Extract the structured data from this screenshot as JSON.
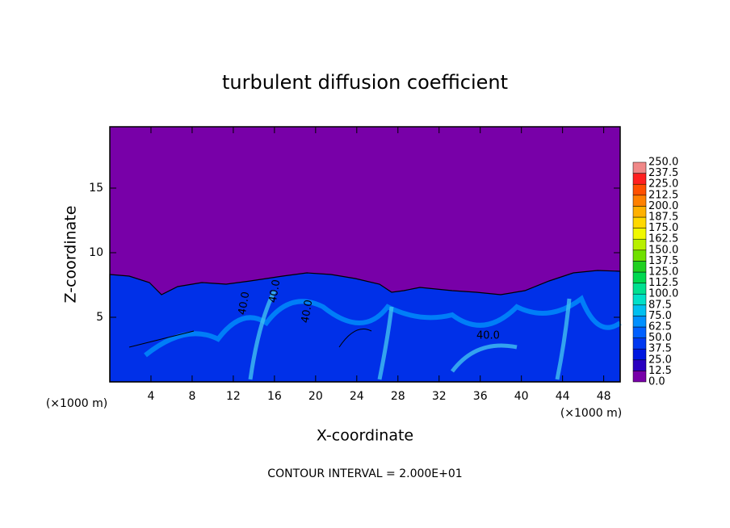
{
  "chart_data": {
    "type": "contour",
    "title": "turbulent diffusion coefficient",
    "x_label": "X-coordinate",
    "y_label": "Z-coordinate",
    "x_unit": "(×1000 m)",
    "y_unit": "(×1000 m)",
    "footer": "CONTOUR INTERVAL = 2.000E+01",
    "xlim": [
      0,
      49.6
    ],
    "ylim": [
      0,
      19.75
    ],
    "xticks": [
      4,
      8,
      12,
      16,
      20,
      24,
      28,
      32,
      36,
      40,
      44,
      48
    ],
    "yticks": [
      5,
      10,
      15
    ],
    "contour_labels": [
      "40.0",
      "40.0",
      "40.0",
      "40.0"
    ],
    "colorbar": {
      "levels": [
        {
          "value": 0,
          "label": "0.0"
        },
        {
          "value": 12.5,
          "label": "12.5"
        },
        {
          "value": 25,
          "label": "25.0"
        },
        {
          "value": 37.5,
          "label": "37.5"
        },
        {
          "value": 50,
          "label": "50.0"
        },
        {
          "value": 62.5,
          "label": "62.5"
        },
        {
          "value": 75,
          "label": "75.0"
        },
        {
          "value": 87.5,
          "label": "87.5"
        },
        {
          "value": 100,
          "label": "100.0"
        },
        {
          "value": 112.5,
          "label": "112.5"
        },
        {
          "value": 125,
          "label": "125.0"
        },
        {
          "value": 137.5,
          "label": "137.5"
        },
        {
          "value": 150,
          "label": "150.0"
        },
        {
          "value": 162.5,
          "label": "162.5"
        },
        {
          "value": 175,
          "label": "175.0"
        },
        {
          "value": 187.5,
          "label": "187.5"
        },
        {
          "value": 200,
          "label": "200.0"
        },
        {
          "value": 212.5,
          "label": "212.5"
        },
        {
          "value": 225,
          "label": "225.0"
        },
        {
          "value": 237.5,
          "label": "237.5"
        },
        {
          "value": 250,
          "label": "250.0"
        }
      ],
      "colors": [
        "#7800a8",
        "#2a00c0",
        "#0018e0",
        "#0038f0",
        "#0060ff",
        "#0090ff",
        "#00c0f0",
        "#00e0c8",
        "#00e090",
        "#00d850",
        "#20d020",
        "#70e000",
        "#b8f000",
        "#f0f800",
        "#ffd800",
        "#ffb000",
        "#ff8000",
        "#ff5000",
        "#ff2020",
        "#f08888"
      ]
    }
  }
}
